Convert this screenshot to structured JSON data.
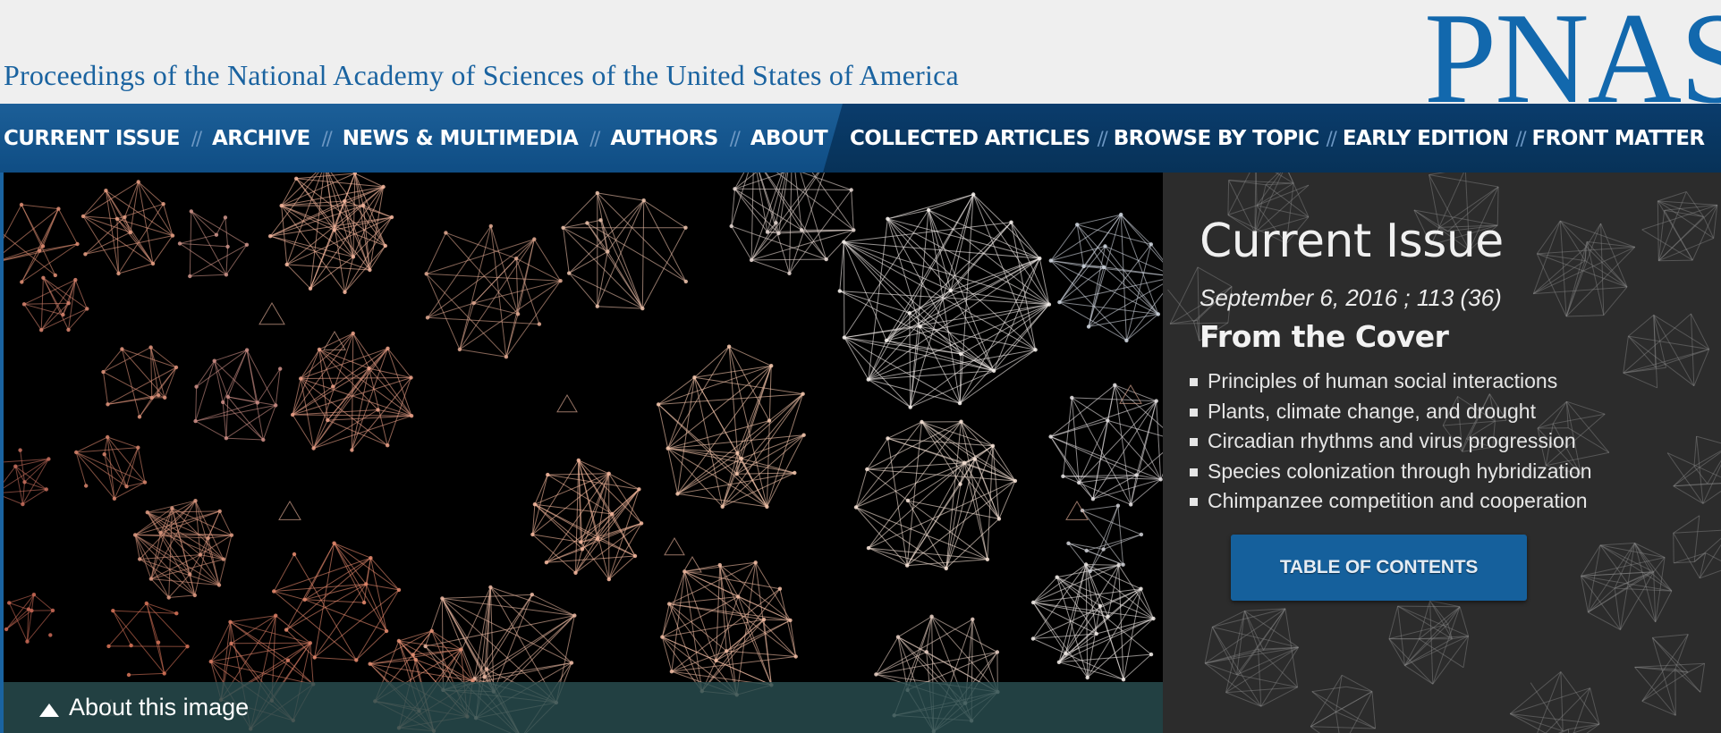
{
  "header": {
    "tagline": "Proceedings of the National Academy of Sciences of the United States of America",
    "logo_text": "PNAS"
  },
  "nav": {
    "left_items": [
      {
        "label": "CURRENT ISSUE"
      },
      {
        "label": "ARCHIVE"
      },
      {
        "label": "NEWS & MULTIMEDIA"
      },
      {
        "label": "AUTHORS"
      },
      {
        "label": "ABOUT"
      }
    ],
    "right_items": [
      {
        "label": "COLLECTED ARTICLES"
      },
      {
        "label": "BROWSE BY TOPIC"
      },
      {
        "label": "EARLY EDITION"
      },
      {
        "label": "FRONT MATTER"
      }
    ],
    "separator": "//"
  },
  "hero": {
    "about_label": "About this image"
  },
  "current_issue": {
    "title": "Current Issue",
    "date": "September 6, 2016 ; 113 (36)",
    "cover_heading": "From the Cover",
    "cover_items": [
      "Principles of human social interactions",
      "Plants, climate change, and drought",
      "Circadian rhythms and virus progression",
      "Species colonization through hybridization",
      "Chimpanzee competition and cooperation"
    ],
    "toc_button": "TABLE OF CONTENTS"
  },
  "colors": {
    "brand_blue": "#1268ad",
    "nav_blue": "#1c5f98",
    "nav_dark": "#0a3c6c",
    "panel_bg": "#2c2c2c",
    "button_blue": "#15609c"
  }
}
